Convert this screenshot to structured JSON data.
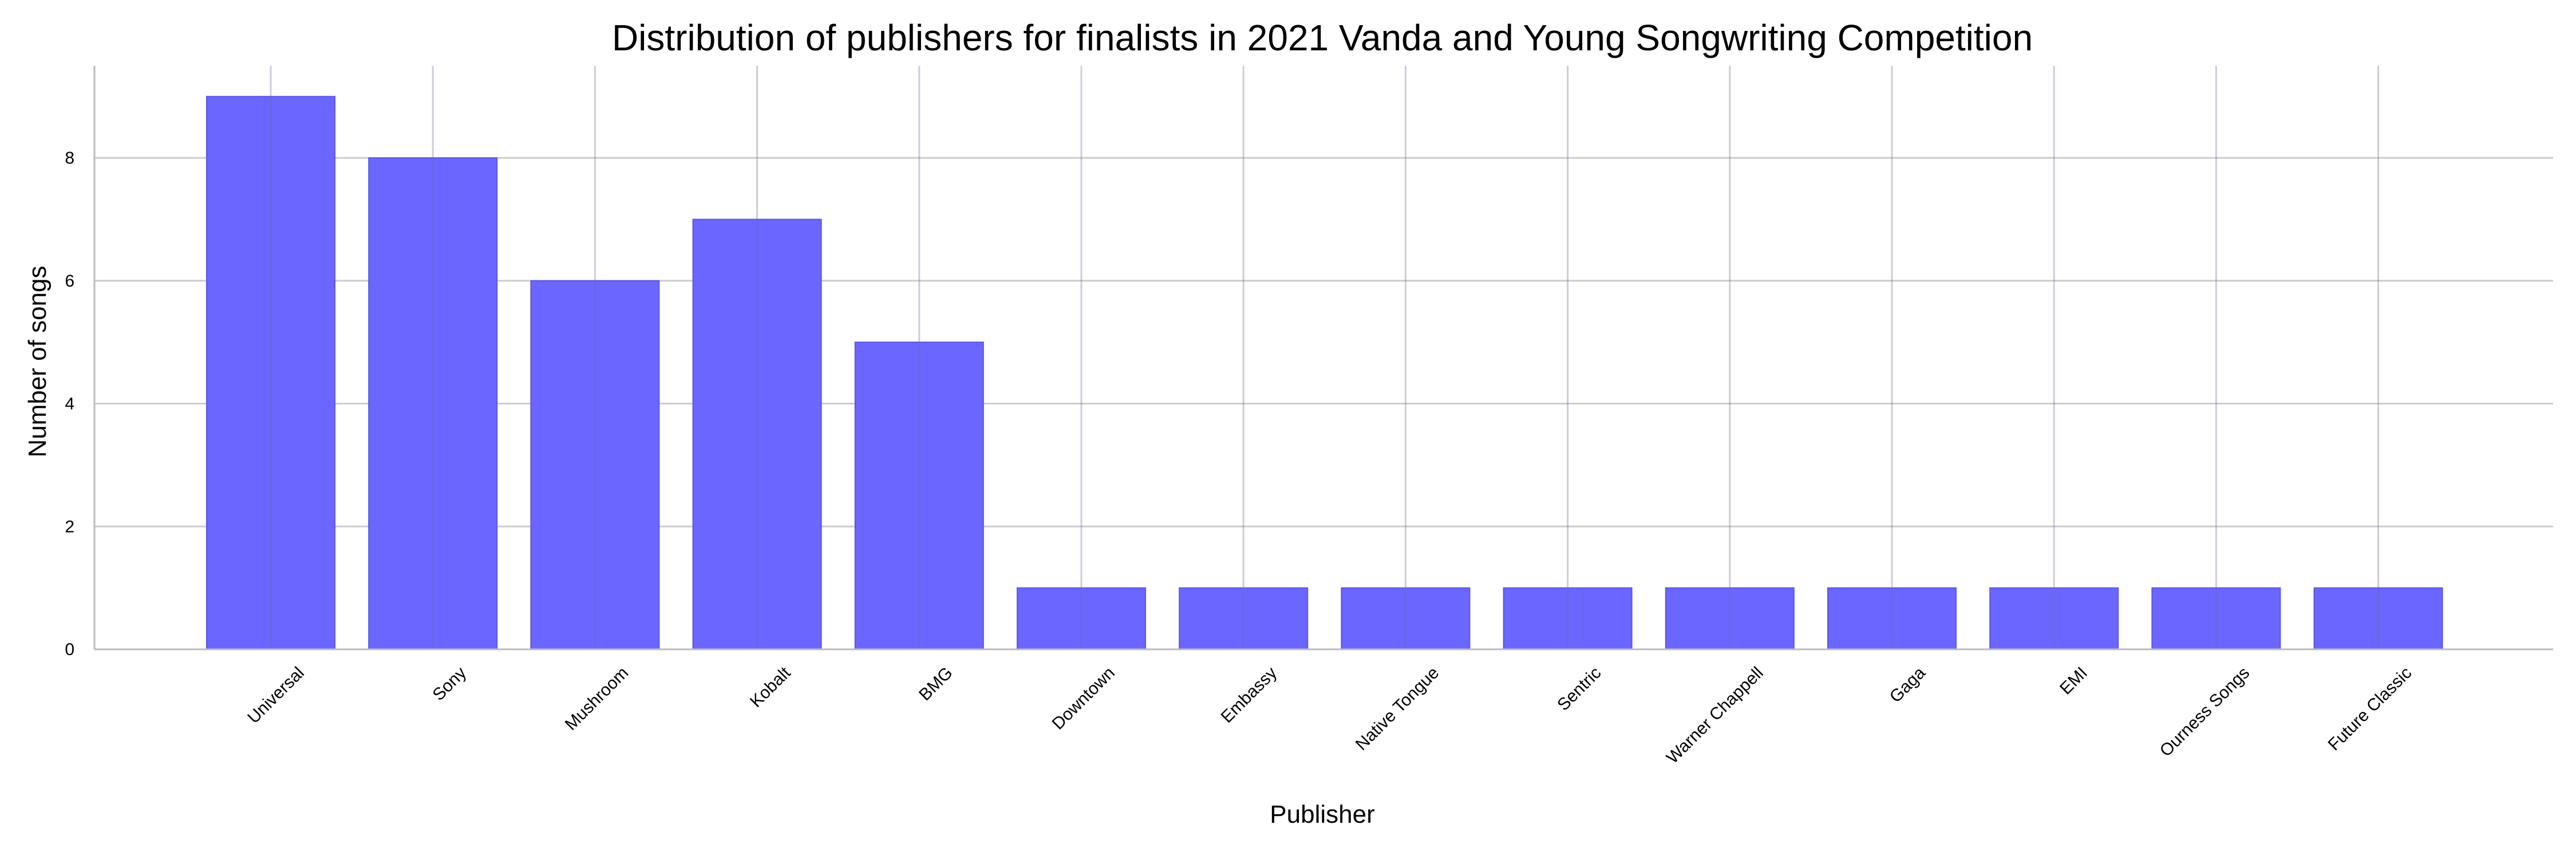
{
  "chart_data": {
    "type": "bar",
    "title": "Distribution of publishers for finalists in 2021 Vanda and Young Songwriting Competition",
    "xlabel": "Publisher",
    "ylabel": "Number of songs",
    "categories": [
      "Universal",
      "Sony",
      "Mushroom",
      "Kobalt",
      "BMG",
      "Downtown",
      "Embassy",
      "Native Tongue",
      "Sentric",
      "Warner Chappell",
      "Gaga",
      "EMI",
      "Ourness Songs",
      "Future Classic"
    ],
    "values": [
      9,
      8,
      6,
      7,
      5,
      1,
      1,
      1,
      1,
      1,
      1,
      1,
      1,
      1
    ],
    "ylim": [
      0,
      9.5
    ],
    "yticks": [
      0,
      2,
      4,
      6,
      8
    ],
    "grid": true,
    "legend": "none",
    "colors": {
      "bar": "#6a66ff",
      "bar_edge": "#5a56e6",
      "grid": "#cccccc",
      "axis": "#bbbbbb",
      "text": "#000000"
    }
  }
}
